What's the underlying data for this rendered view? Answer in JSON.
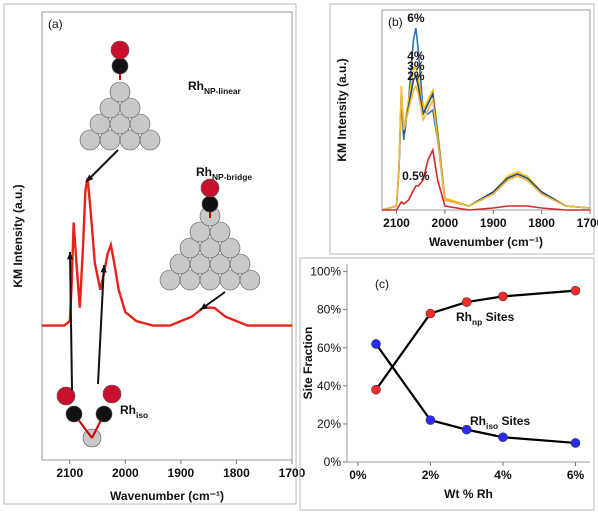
{
  "chart_data": [
    {
      "type": "line",
      "panel": "(a)",
      "xlabel": "Wavenumber (cm⁻¹)",
      "ylabel": "KM Intensity (a.u.)",
      "xlim": [
        2150,
        1700
      ],
      "xticks": [
        2100,
        2000,
        1900,
        1800,
        1700
      ],
      "ylim": [
        0,
        100
      ],
      "color": "#e8211c",
      "x": [
        2150,
        2110,
        2100,
        2097,
        2093,
        2088,
        2082,
        2076,
        2072,
        2068,
        2062,
        2055,
        2045,
        2038,
        2032,
        2026,
        2020,
        2012,
        2000,
        1980,
        1950,
        1920,
        1900,
        1880,
        1860,
        1850,
        1840,
        1820,
        1800,
        1780,
        1750,
        1720,
        1700
      ],
      "values": [
        30,
        30,
        31,
        38,
        53,
        44,
        34,
        48,
        60,
        63,
        55,
        44,
        38,
        42,
        46,
        48,
        44,
        38,
        33,
        31,
        30,
        30,
        31,
        32,
        34,
        34,
        34,
        32,
        31,
        30,
        30,
        30,
        30
      ],
      "annotations": [
        {
          "base": "Rh",
          "sub": "NP-linear"
        },
        {
          "base": "Rh",
          "sub": "NP-bridge"
        },
        {
          "base": "Rh",
          "sub": "iso"
        }
      ]
    },
    {
      "type": "line",
      "panel": "(b)",
      "xlabel": "Wavenumber (cm⁻¹)",
      "ylabel": "KM Intensity (a.u.)",
      "xlim": [
        2130,
        1700
      ],
      "xticks": [
        2100,
        2000,
        1900,
        1800,
        1700
      ],
      "ylim": [
        0,
        100
      ],
      "x": [
        2130,
        2100,
        2095,
        2090,
        2085,
        2075,
        2065,
        2060,
        2055,
        2045,
        2035,
        2025,
        2015,
        2000,
        1950,
        1900,
        1870,
        1850,
        1830,
        1800,
        1750,
        1700
      ],
      "series": [
        {
          "name": "6%",
          "color": "#2e75b6",
          "values": [
            0,
            2,
            20,
            55,
            35,
            55,
            85,
            91,
            80,
            50,
            48,
            50,
            35,
            5,
            2,
            8,
            15,
            17,
            15,
            8,
            2,
            1
          ]
        },
        {
          "name": "4%",
          "color": "#ffc000",
          "values": [
            0,
            2,
            22,
            62,
            40,
            55,
            70,
            72,
            66,
            50,
            55,
            60,
            40,
            6,
            2,
            9,
            17,
            19,
            17,
            9,
            2,
            1
          ]
        },
        {
          "name": "3%",
          "color": "#1f4e79",
          "values": [
            0,
            2,
            20,
            58,
            38,
            52,
            65,
            67,
            62,
            48,
            53,
            58,
            38,
            5,
            2,
            9,
            16,
            18,
            16,
            9,
            2,
            1
          ]
        },
        {
          "name": "2%",
          "color": "#f4b942",
          "values": [
            0,
            2,
            20,
            60,
            40,
            50,
            60,
            62,
            58,
            45,
            50,
            55,
            36,
            5,
            2,
            8,
            15,
            17,
            15,
            8,
            2,
            1
          ]
        },
        {
          "name": "0.5%",
          "color": "#d62828",
          "values": [
            0,
            0,
            2,
            4,
            3,
            5,
            10,
            12,
            12,
            15,
            25,
            30,
            15,
            2,
            0,
            1,
            2,
            2,
            2,
            1,
            0,
            0
          ]
        }
      ]
    },
    {
      "type": "scatter",
      "panel": "(c)",
      "xlabel": "Wt % Rh",
      "ylabel": "Site Fraction",
      "xlim": [
        -0.3,
        6.4
      ],
      "xticks": [
        {
          "value": 0,
          "label": "0%"
        },
        {
          "value": 2,
          "label": "2%"
        },
        {
          "value": 4,
          "label": "4%"
        },
        {
          "value": 6,
          "label": "6%"
        }
      ],
      "ylim": [
        0,
        104
      ],
      "yticks": [
        {
          "value": 0,
          "label": "0%"
        },
        {
          "value": 20,
          "label": "20%"
        },
        {
          "value": 40,
          "label": "40%"
        },
        {
          "value": 60,
          "label": "60%"
        },
        {
          "value": 80,
          "label": "80%"
        },
        {
          "value": 100,
          "label": "100%"
        }
      ],
      "x": [
        0.5,
        2,
        3,
        4,
        6
      ],
      "series": [
        {
          "name": "np",
          "color": "#ff2a2a",
          "values": [
            38,
            78,
            84,
            87,
            90
          ]
        },
        {
          "name": "iso",
          "color": "#2a2aff",
          "values": [
            62,
            22,
            17,
            13,
            10
          ]
        }
      ],
      "annotations": [
        {
          "base": "Rh",
          "sub": "np",
          "suffix": " Sites"
        },
        {
          "base": "Rh",
          "sub": "iso",
          "suffix": " Sites"
        }
      ]
    }
  ]
}
